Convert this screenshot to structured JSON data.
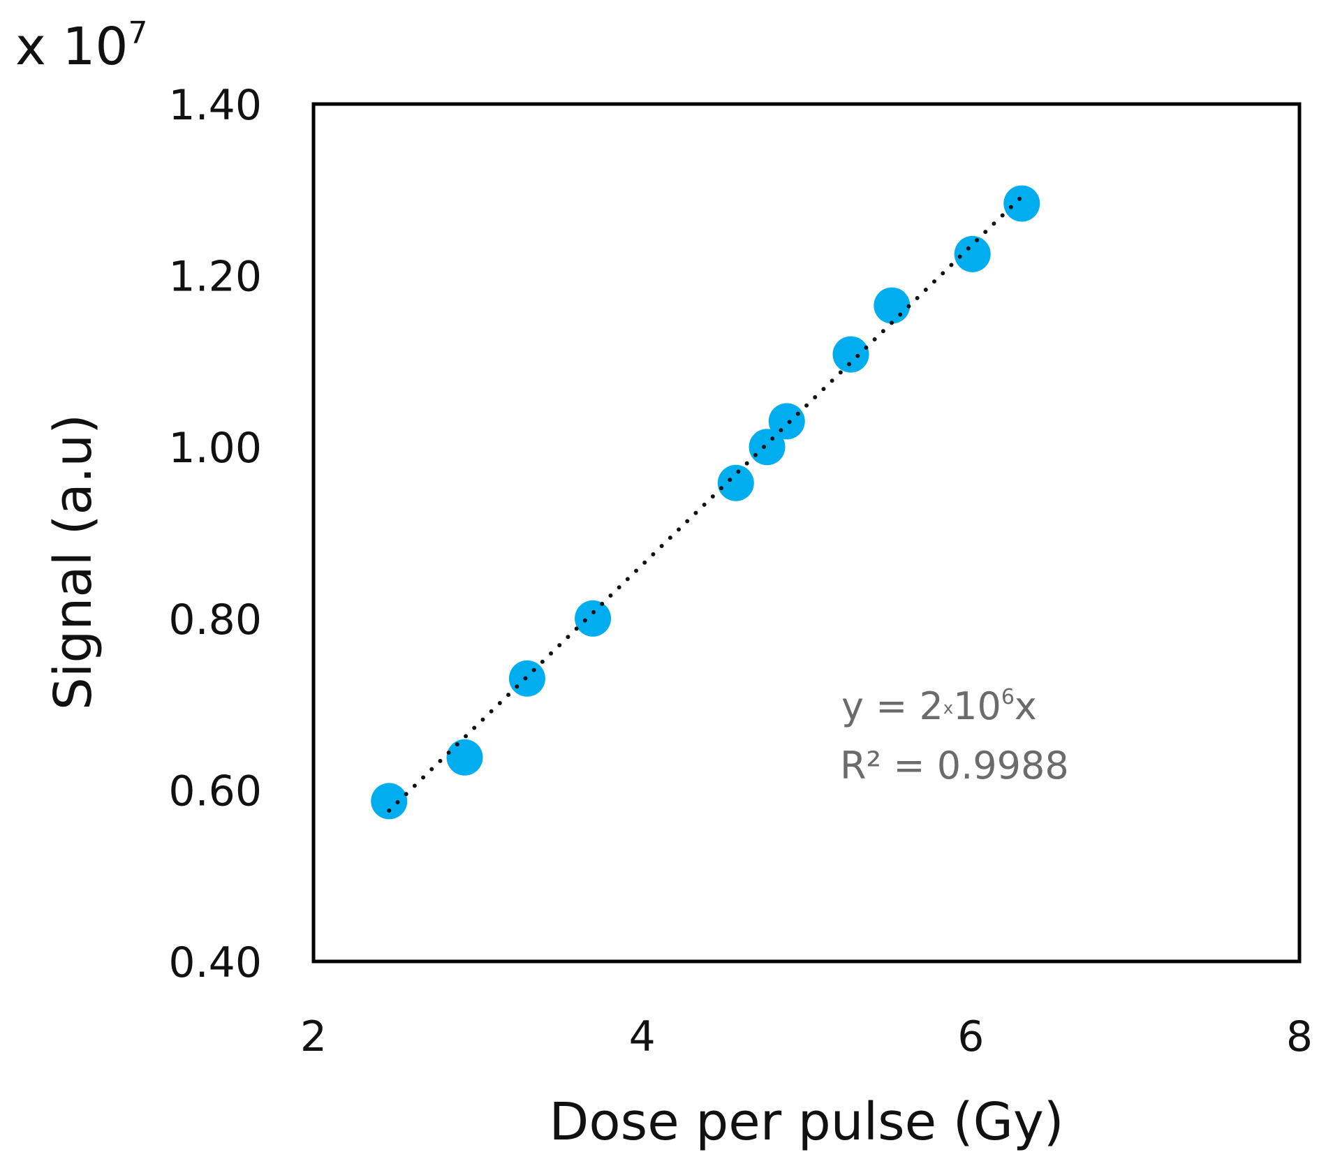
{
  "chart_data": {
    "type": "scatter",
    "title": "",
    "xlabel": "Dose per pulse (Gy)",
    "ylabel": "Signal (a.u)",
    "y_multiplier_label": "x 10",
    "y_multiplier_exponent": "7",
    "xlim": [
      2,
      8
    ],
    "ylim": [
      0.4,
      1.4
    ],
    "x_ticks": [
      "2",
      "4",
      "6",
      "8"
    ],
    "y_ticks": [
      "0.40",
      "0.60",
      "0.80",
      "1.00",
      "1.20",
      "1.40"
    ],
    "x_tick_values": [
      2,
      4,
      6,
      8
    ],
    "y_tick_values": [
      0.4,
      0.6,
      0.8,
      1.0,
      1.2,
      1.4
    ],
    "grid": false,
    "series": [
      {
        "name": "Signal",
        "color": "#00AEEF",
        "points": [
          {
            "x": 2.46,
            "y": 0.587
          },
          {
            "x": 2.92,
            "y": 0.638
          },
          {
            "x": 3.3,
            "y": 0.73
          },
          {
            "x": 3.7,
            "y": 0.8
          },
          {
            "x": 4.57,
            "y": 0.958
          },
          {
            "x": 4.76,
            "y": 1.0
          },
          {
            "x": 4.88,
            "y": 1.03
          },
          {
            "x": 5.27,
            "y": 1.108
          },
          {
            "x": 5.52,
            "y": 1.165
          },
          {
            "x": 6.01,
            "y": 1.225
          },
          {
            "x": 6.31,
            "y": 1.284
          }
        ]
      }
    ],
    "trendline": {
      "style": "dotted",
      "color": "#111111",
      "x_start": 2.46,
      "y_start": 0.576,
      "x_end": 6.31,
      "y_end": 1.292
    },
    "annotation": {
      "equation_prefix": "y = 2",
      "equation_times": "x",
      "equation_base": "10",
      "equation_exponent": "6",
      "equation_suffix": "x",
      "r_squared": "R² = 0.9988",
      "color": "#6b6b6b"
    }
  }
}
